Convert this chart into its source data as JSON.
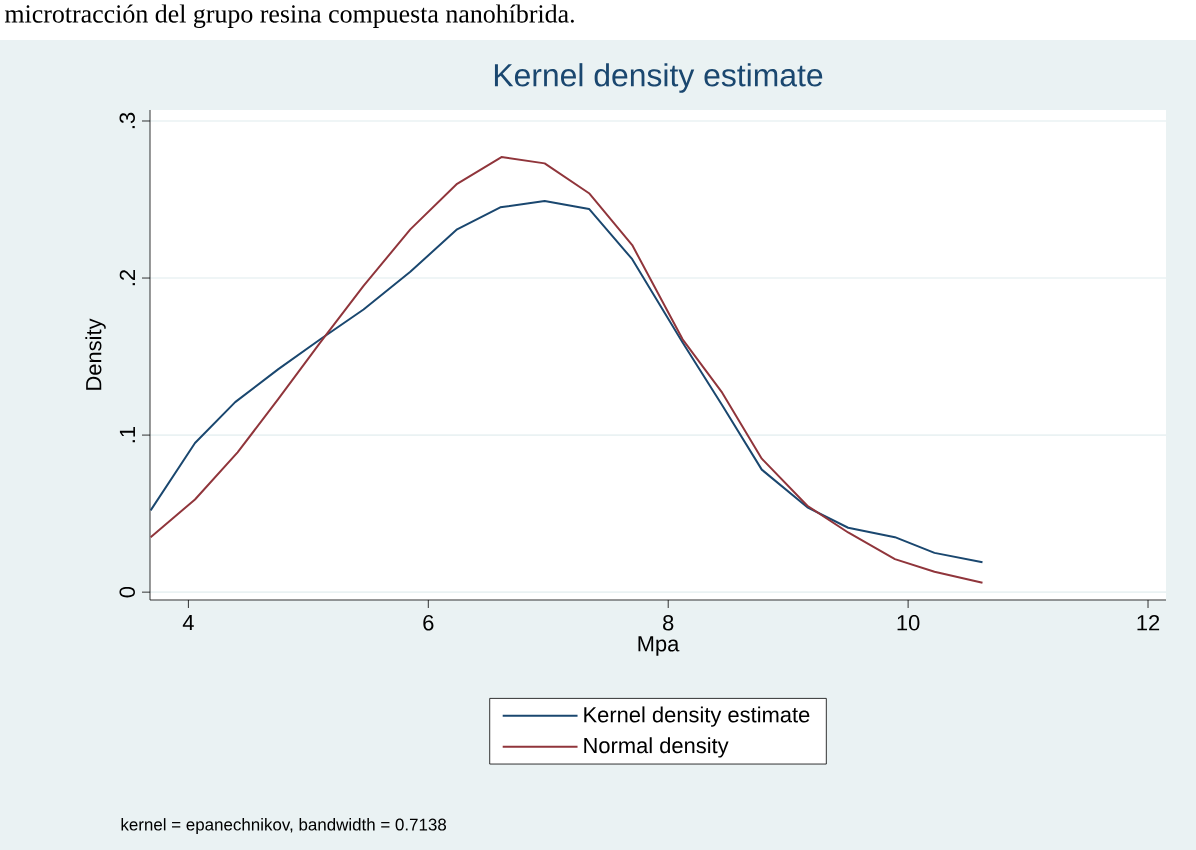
{
  "chart_data": {
    "type": "line",
    "title": "Kernel density estimate",
    "xlabel": "Mpa",
    "ylabel": "Density",
    "annotations": [
      "microtracción del grupo resina compuesta nanohíbrida.",
      "kernel = epanechnikov, bandwidth = 0.7138"
    ],
    "series": [
      {
        "name": "Kernel density estimate",
        "color": "#1a476f",
        "x": [
          3.685,
          4.055,
          4.39,
          4.75,
          5.1,
          5.46,
          5.85,
          6.24,
          6.6,
          6.97,
          7.34,
          7.7,
          8.12,
          8.45,
          8.78,
          9.16,
          9.5,
          9.89,
          10.22,
          10.62
        ],
        "values": [
          0.052,
          0.095,
          0.121,
          0.142,
          0.161,
          0.18,
          0.204,
          0.231,
          0.245,
          0.249,
          0.244,
          0.212,
          0.159,
          0.119,
          0.078,
          0.054,
          0.041,
          0.035,
          0.025,
          0.019
        ]
      },
      {
        "name": "Normal density",
        "color": "#90353b",
        "x": [
          3.685,
          4.055,
          4.41,
          4.75,
          5.1,
          5.46,
          5.85,
          6.24,
          6.61,
          6.97,
          7.34,
          7.7,
          8.12,
          8.45,
          8.78,
          9.16,
          9.5,
          9.89,
          10.22,
          10.62
        ],
        "values": [
          0.035,
          0.059,
          0.089,
          0.123,
          0.159,
          0.195,
          0.231,
          0.26,
          0.277,
          0.273,
          0.254,
          0.221,
          0.161,
          0.127,
          0.085,
          0.055,
          0.038,
          0.021,
          0.013,
          0.006
        ]
      }
    ],
    "xlim": [
      3.68,
      12.15
    ],
    "ylim": [
      -0.005,
      0.307
    ],
    "xticks": [
      4,
      6,
      8,
      10,
      12
    ],
    "yticks": [
      0,
      {
        "value": 0.1,
        "label": ".1"
      },
      {
        "value": 0.2,
        "label": ".2"
      },
      {
        "value": 0.3,
        "label": ".3"
      }
    ],
    "grid": "y",
    "legend": "bottom"
  }
}
